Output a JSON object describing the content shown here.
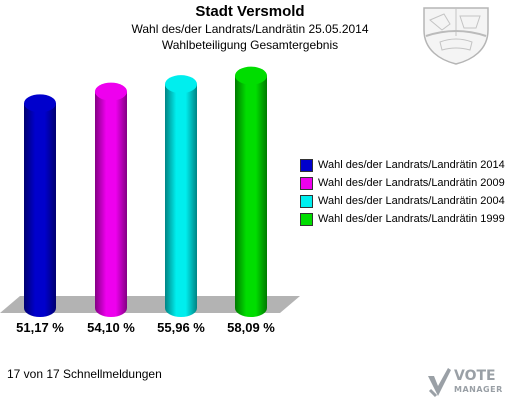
{
  "header": {
    "title": "Stadt Versmold",
    "subtitle": "Wahl des/der Landrats/Landrätin 25.05.2014",
    "subtitle2": "Wahlbeteiligung Gesamtergebnis"
  },
  "chart_data": {
    "type": "bar",
    "title": "Stadt Versmold",
    "subtitle": "Wahl des/der Landrats/Landrätin 25.05.2014 – Wahlbeteiligung Gesamtergebnis",
    "categories": [
      "Wahl des/der Landrats/Landrätin 2014",
      "Wahl des/der Landrats/Landrätin 2009",
      "Wahl des/der Landrats/Landrätin 2004",
      "Wahl des/der Landrats/Landrätin 1999"
    ],
    "values": [
      51.17,
      54.1,
      55.96,
      58.09
    ],
    "value_labels": [
      "51,17 %",
      "54,10 %",
      "55,96 %",
      "58,09 %"
    ],
    "colors": [
      "#0000cc",
      "#ee00ee",
      "#00eeee",
      "#00dd00"
    ],
    "legend_position": "right",
    "grid": false
  },
  "footer": {
    "reporting_status": "17 von 17 Schnellmeldungen"
  },
  "branding": {
    "vendor_logo": "VOTE MANAGER",
    "crest_icon": "nrw-coat-of-arms-icon"
  }
}
